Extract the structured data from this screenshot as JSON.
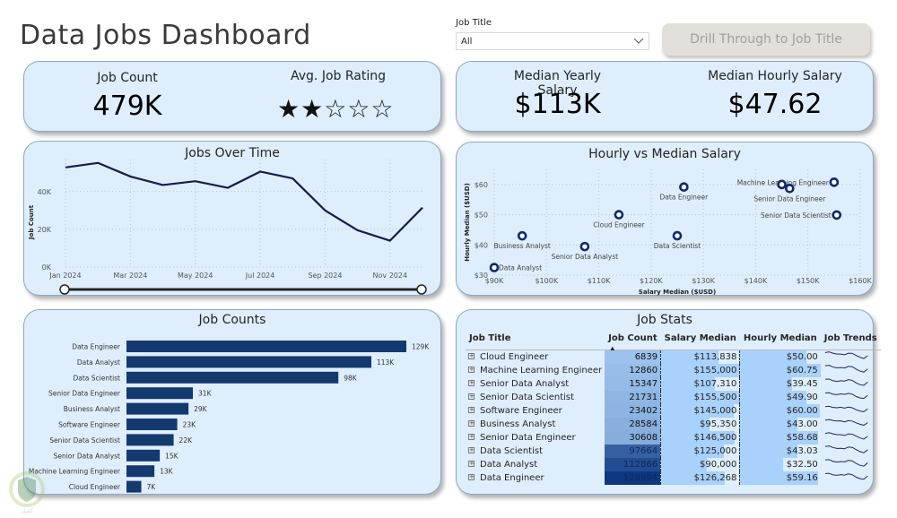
{
  "page": {
    "title": "Data Jobs Dashboard"
  },
  "slicer": {
    "label": "Job Title",
    "value": "All"
  },
  "drill_button": {
    "label": "Drill Through to Job Title"
  },
  "kpi_left": {
    "job_count_label": "Job Count",
    "job_count_value": "479K",
    "rating_label": "Avg. Job Rating",
    "rating_stars_filled": 2,
    "rating_stars_total": 5,
    "rating_stars_text": "★★☆☆☆"
  },
  "kpi_right": {
    "yearly_label": "Median Yearly Salary",
    "yearly_value": "$113K",
    "hourly_label": "Median Hourly Salary",
    "hourly_value": "$47.62"
  },
  "colors": {
    "card_bg": "#deeefd",
    "series": "#0f1f4f",
    "bar": "#13396e",
    "scatter": "#10286e"
  },
  "chart_data": [
    {
      "id": "jobs_over_time",
      "type": "line",
      "title": "Jobs Over Time",
      "xlabel": "",
      "ylabel": "Job Count",
      "x": [
        "Jan 2024",
        "Feb 2024",
        "Mar 2024",
        "Apr 2024",
        "May 2024",
        "Jun 2024",
        "Jul 2024",
        "Aug 2024",
        "Sep 2024",
        "Oct 2024",
        "Nov 2024",
        "Dec 2024"
      ],
      "x_tick_labels": [
        "Jan 2024",
        "Mar 2024",
        "May 2024",
        "Jul 2024",
        "Sep 2024",
        "Nov 2024"
      ],
      "values": [
        52800,
        55200,
        48000,
        43500,
        45500,
        42000,
        50600,
        47000,
        30000,
        19500,
        14000,
        31500
      ],
      "y_tick_labels": [
        "0K",
        "20K",
        "40K"
      ],
      "ylim": [
        0,
        57000
      ],
      "grid": true,
      "range_slider": {
        "start": "Jan 2024",
        "end": "Dec 2024"
      }
    },
    {
      "id": "hourly_vs_median",
      "type": "scatter",
      "title": "Hourly vs Median Salary",
      "xlabel": "Salary Median ($USD)",
      "ylabel": "Hourly Median ($USD)",
      "xlim": [
        90000,
        160000
      ],
      "ylim": [
        30,
        65
      ],
      "x_tick_labels": [
        "$90K",
        "$100K",
        "$110K",
        "$120K",
        "$130K",
        "$140K",
        "$150K",
        "$160K"
      ],
      "y_tick_labels": [
        "$30",
        "$40",
        "$50",
        "$60"
      ],
      "grid": true,
      "points": [
        {
          "label": "Cloud Engineer",
          "x": 113838,
          "y": 50.0,
          "show_label": true,
          "label_pos": "below"
        },
        {
          "label": "Machine Learning Engineer",
          "x": 155000,
          "y": 60.75,
          "show_label": true,
          "label_pos": "left"
        },
        {
          "label": "Senior Data Analyst",
          "x": 107310,
          "y": 39.45,
          "show_label": true,
          "label_pos": "below"
        },
        {
          "label": "Senior Data Scientist",
          "x": 155500,
          "y": 49.9,
          "show_label": true,
          "label_pos": "left"
        },
        {
          "label": "Software Engineer",
          "x": 145000,
          "y": 60.0,
          "show_label": false,
          "label_pos": "none"
        },
        {
          "label": "Business Analyst",
          "x": 95350,
          "y": 43.0,
          "show_label": true,
          "label_pos": "below"
        },
        {
          "label": "Senior Data Engineer",
          "x": 146500,
          "y": 58.68,
          "show_label": true,
          "label_pos": "below"
        },
        {
          "label": "Data Scientist",
          "x": 125000,
          "y": 43.03,
          "show_label": true,
          "label_pos": "below"
        },
        {
          "label": "Data Analyst",
          "x": 90000,
          "y": 32.5,
          "show_label": true,
          "label_pos": "right"
        },
        {
          "label": "Data Engineer",
          "x": 126268,
          "y": 59.16,
          "show_label": true,
          "label_pos": "below"
        }
      ]
    },
    {
      "id": "job_counts",
      "type": "bar",
      "orientation": "horizontal",
      "title": "Job Counts",
      "categories": [
        "Data Engineer",
        "Data Analyst",
        "Data Scientist",
        "Senior Data Engineer",
        "Business Analyst",
        "Software Engineer",
        "Senior Data Scientist",
        "Senior Data Analyst",
        "Machine Learning Engineer",
        "Cloud Engineer"
      ],
      "values": [
        128994,
        112866,
        97664,
        30608,
        28584,
        23402,
        21731,
        15347,
        12860,
        6839
      ],
      "data_labels": [
        "129K",
        "113K",
        "98K",
        "31K",
        "29K",
        "23K",
        "22K",
        "15K",
        "13K",
        "7K"
      ],
      "xlim": [
        0,
        128994
      ],
      "grid": false
    }
  ],
  "job_stats": {
    "title": "Job Stats",
    "columns": [
      "Job Title",
      "Job Count",
      "Salary Median",
      "Hourly Median",
      "Job Trends"
    ],
    "sort_column": "Job Count",
    "sort_direction": "ascending",
    "rows": [
      {
        "title": "Cloud Engineer",
        "count": "6839",
        "count_n": 6839,
        "salary": "$113,838",
        "salary_n": 113838,
        "hourly": "$50.00",
        "hourly_n": 50.0
      },
      {
        "title": "Machine Learning Engineer",
        "count": "12860",
        "count_n": 12860,
        "salary": "$155,000",
        "salary_n": 155000,
        "hourly": "$60.75",
        "hourly_n": 60.75
      },
      {
        "title": "Senior Data Analyst",
        "count": "15347",
        "count_n": 15347,
        "salary": "$107,310",
        "salary_n": 107310,
        "hourly": "$39.45",
        "hourly_n": 39.45
      },
      {
        "title": "Senior Data Scientist",
        "count": "21731",
        "count_n": 21731,
        "salary": "$155,500",
        "salary_n": 155500,
        "hourly": "$49.90",
        "hourly_n": 49.9
      },
      {
        "title": "Software Engineer",
        "count": "23402",
        "count_n": 23402,
        "salary": "$145,000",
        "salary_n": 145000,
        "hourly": "$60.00",
        "hourly_n": 60.0
      },
      {
        "title": "Business Analyst",
        "count": "28584",
        "count_n": 28584,
        "salary": "$95,350",
        "salary_n": 95350,
        "hourly": "$43.00",
        "hourly_n": 43.0
      },
      {
        "title": "Senior Data Engineer",
        "count": "30608",
        "count_n": 30608,
        "salary": "$146,500",
        "salary_n": 146500,
        "hourly": "$58.68",
        "hourly_n": 58.68
      },
      {
        "title": "Data Scientist",
        "count": "97664",
        "count_n": 97664,
        "salary": "$125,000",
        "salary_n": 125000,
        "hourly": "$43.03",
        "hourly_n": 43.03
      },
      {
        "title": "Data Analyst",
        "count": "112866",
        "count_n": 112866,
        "salary": "$90,000",
        "salary_n": 90000,
        "hourly": "$32.50",
        "hourly_n": 32.5
      },
      {
        "title": "Data Engineer",
        "count": "128994",
        "count_n": 128994,
        "salary": "$126,268",
        "salary_n": 126268,
        "hourly": "$59.16",
        "hourly_n": 59.16
      }
    ],
    "trend_shape": [
      0.85,
      0.9,
      0.75,
      0.68,
      0.72,
      0.65,
      0.8,
      0.74,
      0.5,
      0.32,
      0.22,
      0.55
    ]
  }
}
